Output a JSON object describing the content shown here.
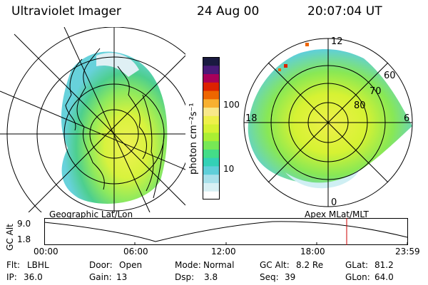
{
  "header": {
    "instrument": "Ultraviolet Imager",
    "date": "24 Aug 00",
    "time": "20:07:04 UT"
  },
  "left_panel": {
    "caption": "Geographic Lat/Lon"
  },
  "right_panel": {
    "caption": "Apex MLat/MLT",
    "mlt_labels": {
      "top": "12",
      "left": "18",
      "right": "6",
      "bottom": "0"
    },
    "lat_labels": [
      "60",
      "70",
      "80"
    ]
  },
  "colorbar": {
    "unit_label": "photon cm⁻²s⁻¹",
    "ticks": [
      "100",
      "10"
    ],
    "colors": [
      "#ffffff",
      "#d8f0f4",
      "#a8e0ea",
      "#5fcfd9",
      "#33d1b6",
      "#44dd88",
      "#77e855",
      "#aaee33",
      "#d6f233",
      "#eef04a",
      "#f8e88a",
      "#f8b030",
      "#ee6600",
      "#dd2200",
      "#a8005a",
      "#4a1a78",
      "#1a1a40"
    ]
  },
  "timeline": {
    "axis_label": "GC Alt",
    "y_ticks": [
      "9.0",
      "1.8"
    ],
    "x_ticks": [
      "00:00",
      "06:00",
      "12:00",
      "18:00",
      "23:59"
    ],
    "marker_color": "#cc0000"
  },
  "info": {
    "row1": [
      {
        "label": "Flt:",
        "value": "LBHL"
      },
      {
        "label": "Door:",
        "value": "Open"
      },
      {
        "label": "Mode:",
        "value": "Normal"
      },
      {
        "label": "GC Alt:",
        "value": "8.2 Re"
      },
      {
        "label": "GLat:",
        "value": "81.2"
      }
    ],
    "row2": [
      {
        "label": "IP:",
        "value": "36.0"
      },
      {
        "label": "Gain:",
        "value": "13"
      },
      {
        "label": "Dsp:",
        "value": "3.8"
      },
      {
        "label": "Seq:",
        "value": "39"
      },
      {
        "label": "GLon:",
        "value": "64.0"
      }
    ]
  }
}
